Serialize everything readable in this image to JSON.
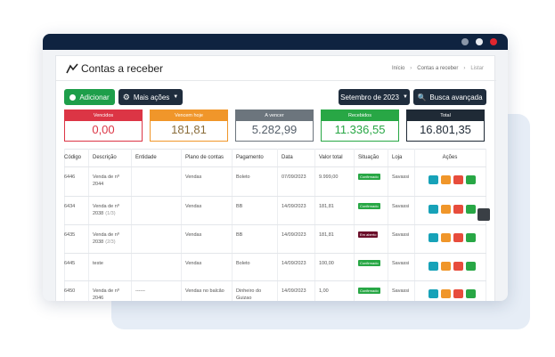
{
  "header": {
    "title": "Contas a receber",
    "breadcrumb": [
      "Início",
      "Contas a receber",
      "Listar"
    ]
  },
  "toolbar": {
    "add": "Adicionar",
    "more": "Mais ações",
    "period": "Setembro de 2023",
    "search": "Busca avançada"
  },
  "cards": [
    {
      "label": "Vencidos",
      "value": "0,00",
      "color": "#dc3545",
      "value_color": "#dc3545"
    },
    {
      "label": "Vencem hoje",
      "value": "181,81",
      "color": "#f0962a",
      "value_color": "#8a6d3b"
    },
    {
      "label": "A vencer",
      "value": "5.282,99",
      "color": "#6c757d",
      "value_color": "#555f6a"
    },
    {
      "label": "Recebidos",
      "value": "11.336,55",
      "color": "#28a745",
      "value_color": "#28a745"
    },
    {
      "label": "Total",
      "value": "16.801,35",
      "color": "#1f2a36",
      "value_color": "#1f2a36"
    }
  ],
  "table": {
    "columns": [
      "Código",
      "Descrição",
      "Entidade",
      "Plano de contas",
      "Pagamento",
      "Data",
      "Valor total",
      "Situação",
      "Loja",
      "Ações"
    ],
    "rows": [
      {
        "codigo": "6446",
        "descricao": "Venda de nº 2044",
        "plano": "Vendas",
        "pagamento": "Boleto",
        "data": "07/09/2023",
        "valor": "9.999,00",
        "situacao": "Confirmado",
        "situacao_color": "#28a745",
        "loja": "Savassi"
      },
      {
        "codigo": "6434",
        "descricao": "Venda de nº 2038",
        "parcela": "(1/3)",
        "plano": "Vendas",
        "pagamento": "BB",
        "data": "14/09/2023",
        "valor": "181,81",
        "situacao": "Confirmado",
        "situacao_color": "#28a745",
        "loja": "Savassi"
      },
      {
        "codigo": "6435",
        "descricao": "Venda de nº 2038",
        "parcela": "(2/3)",
        "plano": "Vendas",
        "pagamento": "BB",
        "data": "14/09/2023",
        "valor": "181,81",
        "situacao": "Em aberto",
        "situacao_color": "#6b0f2a",
        "loja": "Savassi"
      },
      {
        "codigo": "6445",
        "descricao": "teste",
        "plano": "Vendas",
        "pagamento": "Boleto",
        "data": "14/09/2023",
        "valor": "100,00",
        "situacao": "Confirmado",
        "situacao_color": "#28a745",
        "loja": "Savassi"
      },
      {
        "codigo": "6450",
        "descricao": "Venda de nº 2046",
        "entidade": "------",
        "plano": "Vendas no balcão",
        "pagamento": "Dinheiro do Guizao",
        "data": "14/09/2023",
        "valor": "1,00",
        "situacao": "Confirmado",
        "situacao_color": "#28a745",
        "loja": "Savassi"
      }
    ]
  }
}
